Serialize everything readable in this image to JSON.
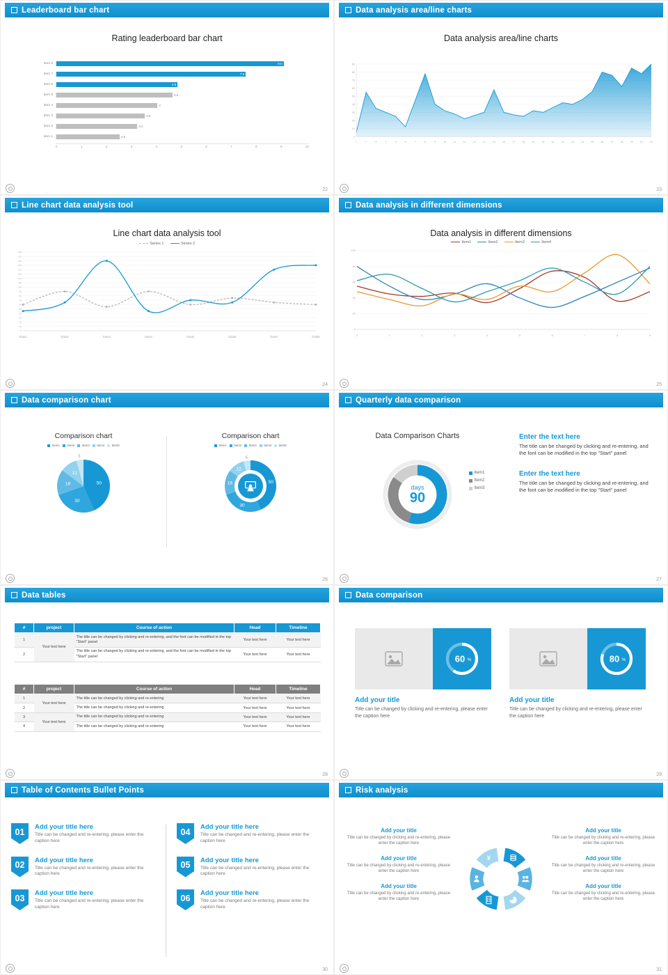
{
  "accent": "#1798d5",
  "slides": {
    "s1": {
      "header": "Leaderboard bar chart",
      "page": "22",
      "title": "Rating leaderboard bar chart"
    },
    "s2": {
      "header": "Data analysis area/line charts",
      "page": "23",
      "title": "Data analysis area/line charts"
    },
    "s3": {
      "header": "Line chart data analysis tool",
      "page": "24",
      "title": "Line chart data analysis tool"
    },
    "s4": {
      "header": "Data analysis in different dimensions",
      "page": "25",
      "title": "Data analysis in different dimensions"
    },
    "s5": {
      "header": "Data comparison chart",
      "page": "26",
      "left_title": "Comparison chart",
      "right_title": "Comparison chart"
    },
    "s6": {
      "header": "Quarterly data comparison",
      "page": "27",
      "title": "Data Comparison Charts",
      "center_top": "days",
      "center_value": "90",
      "blocks": [
        {
          "heading": "Enter the text here",
          "body": "The title can be changed by clicking and re-entering, and the font can be modified in the top \"Start\" panel"
        },
        {
          "heading": "Enter the text here",
          "body": "The title can be changed by clicking and re-entering, and the font can be modified in the top \"Start\" panel"
        }
      ]
    },
    "s7": {
      "header": "Data tables",
      "page": "28",
      "table1": {
        "headers": [
          "#",
          "project",
          "Course of action",
          "Head",
          "Timeline"
        ],
        "project": "Your text here",
        "rows": [
          {
            "num": "1",
            "course": "The title can be changed by clicking and re-entering, and the font can be modified in the top \"Start\" panel",
            "head": "Your text here",
            "timeline": "Your text here"
          },
          {
            "num": "2",
            "course": "The title can be changed by clicking and re-entering, and the font can be modified in the top \"Start\" panel",
            "head": "Your text here",
            "timeline": "Your text here"
          }
        ]
      },
      "table2": {
        "headers": [
          "#",
          "project",
          "Course of action",
          "Head",
          "Timeline"
        ],
        "project1": "Your text here",
        "project2": "Your text here",
        "rows": [
          {
            "num": "1",
            "course": "The title can be changed by clicking and re-entering",
            "head": "Your text here",
            "timeline": "Your text here"
          },
          {
            "num": "2",
            "course": "The title can be changed by clicking and re-entering",
            "head": "Your text here",
            "timeline": "Your text here"
          },
          {
            "num": "3",
            "course": "The title can be changed by clicking and re-entering",
            "head": "Your text here",
            "timeline": "Your text here"
          },
          {
            "num": "4",
            "course": "The title can be changed by clicking and re-entering",
            "head": "Your text here",
            "timeline": "Your text here"
          }
        ]
      }
    },
    "s8": {
      "header": "Data comparison",
      "page": "29",
      "cards": [
        {
          "title": "Add your title",
          "caption": "Title can be changed by clicking and re-entering, please enter the caption here"
        },
        {
          "title": "Add your title",
          "caption": "Title can be changed by clicking and re-entering, please enter the caption here"
        }
      ]
    },
    "s9": {
      "header": "Table of Contents Bullet Points",
      "page": "30",
      "items_left": [
        {
          "num": "01",
          "title": "Add your title here",
          "caption": "Title can be changed and re-entering, please enter the caption here"
        },
        {
          "num": "02",
          "title": "Add your title here",
          "caption": "Title can be changed and re-entering, please enter the caption here"
        },
        {
          "num": "03",
          "title": "Add your title here",
          "caption": "Title can be changed and re-entering, please enter the caption here"
        }
      ],
      "items_right": [
        {
          "num": "04",
          "title": "Add your title here",
          "caption": "Title can be changed and re-entering, please enter the caption here"
        },
        {
          "num": "05",
          "title": "Add your title here",
          "caption": "Title can be changed and re-entering, please enter the caption here"
        },
        {
          "num": "06",
          "title": "Add your title here",
          "caption": "Title can be changed and re-entering, please enter the caption here"
        }
      ]
    },
    "s10": {
      "header": "Risk analysis",
      "page": "31",
      "wheel_icons": [
        "coins-icon",
        "people-icon",
        "pie-icon",
        "building-icon",
        "person-icon",
        "money-icon"
      ],
      "blocks_left": [
        {
          "title": "Add your title",
          "caption": "Title can be changed by clicking and re-entering, please enter the caption here"
        },
        {
          "title": "Add your title",
          "caption": "Title can be changed by clicking and re-entering, please enter the caption here"
        },
        {
          "title": "Add your title",
          "caption": "Title can be changed by clicking and re-entering, please enter the caption here"
        }
      ],
      "blocks_right": [
        {
          "title": "Add your title",
          "caption": "Title can be changed by clicking and re-entering, please enter the caption here"
        },
        {
          "title": "Add your title",
          "caption": "Title can be changed by clicking and re-entering, please enter the caption here"
        },
        {
          "title": "Add your title",
          "caption": "Title can be changed by clicking and re-entering, please enter the caption here"
        }
      ]
    }
  },
  "chart_data": [
    {
      "id": "leaderboard",
      "type": "bar",
      "orientation": "horizontal",
      "title": "Rating leaderboard bar chart",
      "categories": [
        "item 8",
        "item 7",
        "item 6",
        "item 5",
        "item 4",
        "item 3",
        "item 2",
        "item 1"
      ],
      "values": [
        9.0,
        7.5,
        4.8,
        4.6,
        4,
        3.5,
        3.2,
        2.5
      ],
      "value_labels": [
        "9.0",
        "7.5",
        "4.8",
        "4.6",
        "4",
        "3.5",
        "3.2",
        "2.5"
      ],
      "bar_colors": [
        "#1798d5",
        "#1798d5",
        "#1798d5",
        "#bfbfbf",
        "#bfbfbf",
        "#bfbfbf",
        "#bfbfbf",
        "#bfbfbf"
      ],
      "gray": "#bfbfbf",
      "xlim": [
        0,
        10
      ],
      "xticks": [
        0,
        1,
        2,
        3,
        4,
        5,
        6,
        7,
        8,
        9,
        10
      ]
    },
    {
      "id": "area",
      "type": "area",
      "title": "Data analysis area/line charts",
      "x": [
        1,
        2,
        3,
        4,
        5,
        6,
        7,
        8,
        9,
        10,
        11,
        12,
        13,
        14,
        15,
        16,
        17,
        18,
        19,
        20,
        21,
        22,
        23,
        24,
        25,
        26,
        27,
        28,
        29,
        30,
        31
      ],
      "values": [
        5,
        55,
        35,
        30,
        25,
        12,
        45,
        78,
        40,
        32,
        28,
        22,
        26,
        30,
        58,
        30,
        27,
        25,
        32,
        30,
        36,
        42,
        40,
        46,
        56,
        80,
        76,
        62,
        85,
        78,
        90
      ],
      "ylim": [
        0,
        90
      ],
      "yticks": [
        0,
        10,
        20,
        30,
        40,
        50,
        60,
        70,
        80,
        90
      ],
      "color": "#1798d5"
    },
    {
      "id": "linetool",
      "type": "line",
      "title": "Line chart data analysis tool",
      "categories": [
        "Data1",
        "Data2",
        "Data3",
        "Data4",
        "Data5",
        "Data6",
        "Data7",
        "Data8"
      ],
      "series": [
        {
          "name": "Series 1",
          "color": "#b7b7b7",
          "dash": true,
          "values": [
            60,
            90,
            55,
            90,
            60,
            75,
            65,
            60
          ]
        },
        {
          "name": "Series 2",
          "color": "#1798d5",
          "dash": false,
          "values": [
            45,
            65,
            160,
            45,
            70,
            65,
            140,
            150
          ]
        }
      ],
      "ylim": [
        0,
        180
      ],
      "ytick_step": 10,
      "markers": true,
      "smooth": true
    },
    {
      "id": "dimensions",
      "type": "line",
      "title": "Data analysis in different dimensions",
      "x": [
        0,
        1,
        2,
        3,
        4,
        5,
        6,
        7,
        8,
        9
      ],
      "series": [
        {
          "name": "Item1",
          "color": "#a4372a",
          "values": [
            55,
            45,
            42,
            46,
            34,
            52,
            74,
            66,
            36,
            48
          ]
        },
        {
          "name": "Item2",
          "color": "#2e7fbd",
          "values": [
            80,
            55,
            38,
            45,
            58,
            40,
            28,
            42,
            60,
            78
          ]
        },
        {
          "name": "Item3",
          "color": "#e69a2d",
          "values": [
            48,
            38,
            30,
            45,
            38,
            55,
            48,
            72,
            95,
            58
          ]
        },
        {
          "name": "Item4",
          "color": "#2a9aa8",
          "values": [
            62,
            70,
            52,
            35,
            48,
            62,
            78,
            60,
            45,
            80
          ]
        }
      ],
      "ylim": [
        0,
        100
      ],
      "yticks": [
        0,
        20,
        40,
        60,
        80,
        100
      ],
      "markers": false,
      "smooth": true
    },
    {
      "id": "pie-left",
      "type": "pie",
      "title": "Comparison chart",
      "labels": [
        "Item1",
        "Item2",
        "Item3",
        "Item4",
        "Item5"
      ],
      "values": [
        50,
        30,
        18,
        12,
        5
      ],
      "colors": [
        "#1798d5",
        "#2fa6dd",
        "#5fbbe6",
        "#92d2ef",
        "#c3e7f7"
      ]
    },
    {
      "id": "pie-right",
      "type": "pie",
      "donut": true,
      "title": "Comparison chart",
      "labels": [
        "Item1",
        "Item2",
        "Item3",
        "Item4",
        "Item5"
      ],
      "values": [
        50,
        30,
        18,
        12,
        5
      ],
      "colors": [
        "#1798d5",
        "#2fa6dd",
        "#5fbbe6",
        "#92d2ef",
        "#c3e7f7"
      ],
      "ring_r": 30,
      "ring_w": 14
    },
    {
      "id": "quarter",
      "type": "pie",
      "donut": true,
      "shadow": true,
      "show_labels": false,
      "title": "Data Comparison Charts",
      "labels": [
        "Item1",
        "Item2",
        "Item3"
      ],
      "values": [
        55,
        30,
        15
      ],
      "colors": [
        "#1798d5",
        "#8a8a8a",
        "#cfcfcf"
      ],
      "ring_r": 30,
      "ring_w": 13,
      "center": {
        "top": "days",
        "value": "90"
      }
    },
    {
      "id": "ring-60",
      "type": "ring",
      "value": 60,
      "label": "60",
      "suffix": "%"
    },
    {
      "id": "ring-80",
      "type": "ring",
      "value": 80,
      "label": "80",
      "suffix": "%"
    }
  ]
}
